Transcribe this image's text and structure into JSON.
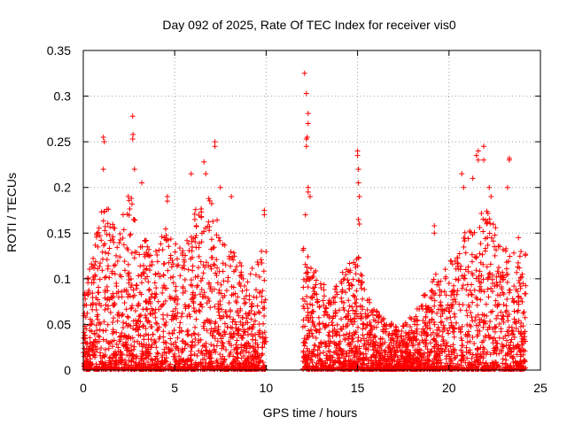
{
  "chart_data": {
    "type": "scatter",
    "title": "Day 092 of 2025, Rate Of TEC Index for receiver vis0",
    "xlabel": "GPS time / hours",
    "ylabel": "ROTI / TECUs",
    "xlim": [
      0,
      25
    ],
    "ylim": [
      0,
      0.35
    ],
    "x_ticks": [
      0,
      5,
      10,
      15,
      20,
      25
    ],
    "x_tick_labels": [
      "0",
      "5",
      "10",
      "15",
      "20",
      "25"
    ],
    "y_ticks": [
      0,
      0.05,
      0.1,
      0.15,
      0.2,
      0.25,
      0.3,
      0.35
    ],
    "y_tick_labels": [
      "0",
      "0.05",
      "0.1",
      "0.15",
      "0.2",
      "0.25",
      "0.3",
      "0.35"
    ],
    "grid": true,
    "marker": "plus",
    "color": "#ff0000",
    "series": [
      {
        "name": "ROTI",
        "segments": [
          [
            0,
            10
          ],
          [
            12,
            24.2
          ]
        ],
        "envelope": [
          [
            0,
            0.09
          ],
          [
            0.5,
            0.12
          ],
          [
            1,
            0.2
          ],
          [
            1.5,
            0.17
          ],
          [
            2,
            0.16
          ],
          [
            2.5,
            0.2
          ],
          [
            3,
            0.16
          ],
          [
            3.5,
            0.14
          ],
          [
            4,
            0.13
          ],
          [
            4.5,
            0.17
          ],
          [
            5,
            0.14
          ],
          [
            5.5,
            0.13
          ],
          [
            6,
            0.17
          ],
          [
            6.5,
            0.2
          ],
          [
            7,
            0.19
          ],
          [
            7.5,
            0.15
          ],
          [
            8,
            0.14
          ],
          [
            8.5,
            0.12
          ],
          [
            9,
            0.11
          ],
          [
            9.5,
            0.12
          ],
          [
            10,
            0.15
          ],
          [
            12,
            0.14
          ],
          [
            12.5,
            0.12
          ],
          [
            13,
            0.1
          ],
          [
            13.5,
            0.09
          ],
          [
            14,
            0.1
          ],
          [
            14.5,
            0.12
          ],
          [
            15,
            0.13
          ],
          [
            15.5,
            0.08
          ],
          [
            16,
            0.07
          ],
          [
            16.5,
            0.06
          ],
          [
            17,
            0.05
          ],
          [
            17.5,
            0.05
          ],
          [
            18,
            0.06
          ],
          [
            18.5,
            0.08
          ],
          [
            19,
            0.1
          ],
          [
            19.5,
            0.11
          ],
          [
            20,
            0.12
          ],
          [
            20.5,
            0.14
          ],
          [
            21,
            0.16
          ],
          [
            21.5,
            0.17
          ],
          [
            22,
            0.18
          ],
          [
            22.5,
            0.16
          ],
          [
            23,
            0.14
          ],
          [
            23.5,
            0.13
          ],
          [
            24,
            0.13
          ]
        ],
        "outliers": [
          [
            1.1,
            0.255
          ],
          [
            1.15,
            0.25
          ],
          [
            2.7,
            0.278
          ],
          [
            2.72,
            0.258
          ],
          [
            2.7,
            0.253
          ],
          [
            2.8,
            0.22
          ],
          [
            1.1,
            0.22
          ],
          [
            3.2,
            0.205
          ],
          [
            4.6,
            0.19
          ],
          [
            4.6,
            0.185
          ],
          [
            6.6,
            0.228
          ],
          [
            6.7,
            0.215
          ],
          [
            7.2,
            0.25
          ],
          [
            7.2,
            0.245
          ],
          [
            7.5,
            0.2
          ],
          [
            8.1,
            0.19
          ],
          [
            9.9,
            0.175
          ],
          [
            9.9,
            0.17
          ],
          [
            5.9,
            0.215
          ],
          [
            6.1,
            0.165
          ],
          [
            12.1,
            0.325
          ],
          [
            12.2,
            0.303
          ],
          [
            12.3,
            0.281
          ],
          [
            12.3,
            0.27
          ],
          [
            12.25,
            0.255
          ],
          [
            12.2,
            0.253
          ],
          [
            12.2,
            0.245
          ],
          [
            12.3,
            0.2
          ],
          [
            12.3,
            0.195
          ],
          [
            12.4,
            0.19
          ],
          [
            12.15,
            0.17
          ],
          [
            15.0,
            0.24
          ],
          [
            15.0,
            0.235
          ],
          [
            15.05,
            0.22
          ],
          [
            15.05,
            0.205
          ],
          [
            15.1,
            0.19
          ],
          [
            15.05,
            0.165
          ],
          [
            15.1,
            0.16
          ],
          [
            19.2,
            0.158
          ],
          [
            19.2,
            0.15
          ],
          [
            20.8,
            0.2
          ],
          [
            20.7,
            0.215
          ],
          [
            21.3,
            0.21
          ],
          [
            21.5,
            0.235
          ],
          [
            21.6,
            0.24
          ],
          [
            21.6,
            0.23
          ],
          [
            21.9,
            0.245
          ],
          [
            21.9,
            0.23
          ],
          [
            22.2,
            0.2
          ],
          [
            23.3,
            0.232
          ],
          [
            23.3,
            0.23
          ],
          [
            23.2,
            0.2
          ],
          [
            22.3,
            0.19
          ],
          [
            23.8,
            0.145
          ]
        ]
      }
    ]
  }
}
